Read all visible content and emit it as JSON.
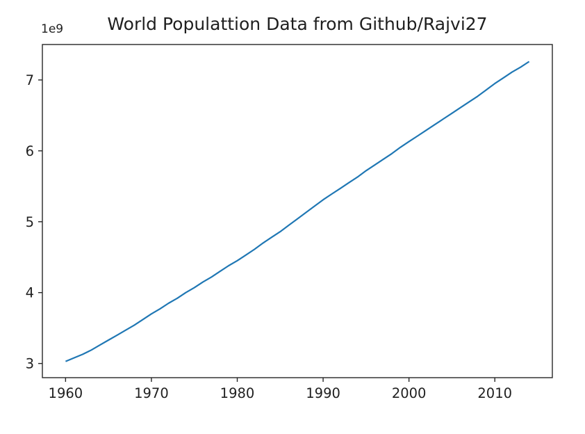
{
  "figure": {
    "background": "#ffffff"
  },
  "chart_data": {
    "type": "line",
    "title": "World Populattion Data from Github/Rajvi27",
    "y_offset_label": "1e9",
    "xlabel": "",
    "ylabel": "",
    "x": [
      1960,
      1961,
      1962,
      1963,
      1964,
      1965,
      1966,
      1967,
      1968,
      1969,
      1970,
      1971,
      1972,
      1973,
      1974,
      1975,
      1976,
      1977,
      1978,
      1979,
      1980,
      1981,
      1982,
      1983,
      1984,
      1985,
      1986,
      1987,
      1988,
      1989,
      1990,
      1991,
      1992,
      1993,
      1994,
      1995,
      1996,
      1997,
      1998,
      1999,
      2000,
      2001,
      2002,
      2003,
      2004,
      2005,
      2006,
      2007,
      2008,
      2009,
      2010,
      2011,
      2012,
      2013,
      2014
    ],
    "y_billions": [
      3.03,
      3.08,
      3.13,
      3.19,
      3.26,
      3.33,
      3.4,
      3.47,
      3.54,
      3.62,
      3.7,
      3.77,
      3.85,
      3.92,
      4.0,
      4.07,
      4.15,
      4.22,
      4.3,
      4.38,
      4.45,
      4.53,
      4.61,
      4.7,
      4.78,
      4.86,
      4.95,
      5.04,
      5.13,
      5.22,
      5.31,
      5.39,
      5.47,
      5.55,
      5.63,
      5.72,
      5.8,
      5.88,
      5.96,
      6.05,
      6.13,
      6.21,
      6.29,
      6.37,
      6.45,
      6.53,
      6.61,
      6.69,
      6.77,
      6.86,
      6.95,
      7.03,
      7.11,
      7.18,
      7.26
    ],
    "xlim": [
      1957.3,
      2016.7
    ],
    "ylim_billions": [
      2.8,
      7.5
    ],
    "xticks": [
      1960,
      1970,
      1980,
      1990,
      2000,
      2010
    ],
    "yticks_billions": [
      3,
      4,
      5,
      6,
      7
    ],
    "line_color": "#1f77b4",
    "axis_color": "#262626",
    "tick_label_color": "#1f1f1f",
    "grid": false,
    "legend": "none"
  }
}
